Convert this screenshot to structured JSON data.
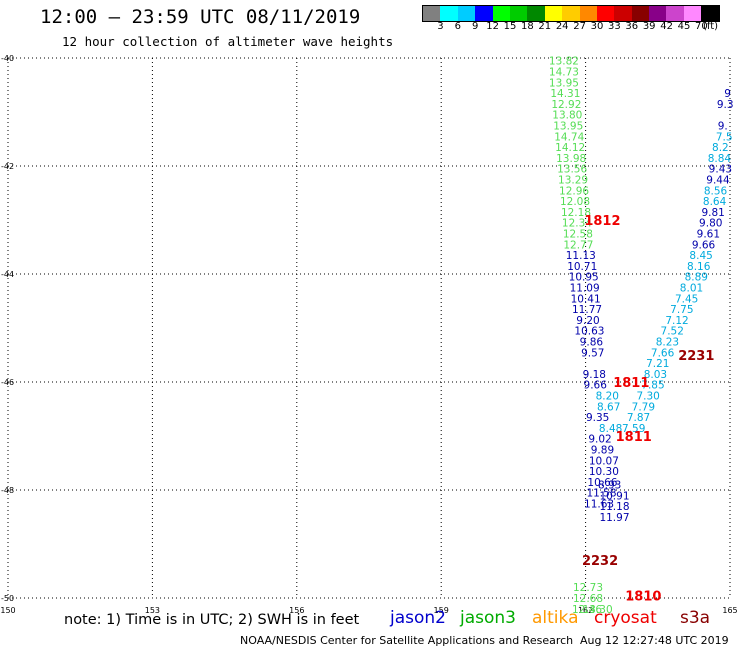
{
  "header": {
    "title": "12:00 – 23:59 UTC 08/11/2019",
    "subtitle": "12 hour collection of altimeter wave heights"
  },
  "legend": {
    "colors": [
      "#808080",
      "#00ffff",
      "#00ccff",
      "#0000ff",
      "#00ff00",
      "#00cc00",
      "#008800",
      "#ffff00",
      "#ffcc00",
      "#ff8800",
      "#ff0000",
      "#cc0000",
      "#880000",
      "#880088",
      "#cc44cc",
      "#ff88ff",
      "#000000"
    ],
    "ticks": [
      "3",
      "6",
      "9",
      "12",
      "15",
      "18",
      "21",
      "24",
      "27",
      "30",
      "33",
      "36",
      "39",
      "42",
      "45",
      "70"
    ],
    "unit": "(ft)"
  },
  "note": "note:  1) Time is in UTC;  2) SWH is in feet",
  "satellites": [
    {
      "name": "jason2",
      "color": "#0000cc"
    },
    {
      "name": "jason3",
      "color": "#00aa00"
    },
    {
      "name": "altika",
      "color": "#ff9900"
    },
    {
      "name": "cryosat",
      "color": "#ee0000"
    },
    {
      "name": "s3a",
      "color": "#880000"
    }
  ],
  "footer": {
    "left": "NOAA/NESDIS Center for Satellite Applications and Research",
    "right": "Aug 12 12:27:48 UTC 2019"
  },
  "chart_data": {
    "type": "scatter",
    "xlim": [
      150,
      165
    ],
    "ylim": [
      -50,
      -40
    ],
    "x_ticks": [
      "150",
      "153",
      "156",
      "159",
      "162",
      "165"
    ],
    "y_ticks": [
      "-40",
      "-42",
      "-44",
      "-46",
      "-48",
      "-50"
    ],
    "palette": {
      "light_green": "#55dd55",
      "dark_blue": "#0000aa",
      "cyan": "#00aadd",
      "red": "#ee0000",
      "dark_red": "#990000",
      "mid_green": "#33bb33"
    },
    "track_labels": [
      {
        "x": 162.35,
        "y": -43.0,
        "text": "1812",
        "color": "red"
      },
      {
        "x": 162.95,
        "y": -46.0,
        "text": "1811",
        "color": "red"
      },
      {
        "x": 163.0,
        "y": -47.0,
        "text": "1811",
        "color": "red"
      },
      {
        "x": 164.3,
        "y": -45.5,
        "text": "2231",
        "color": "dark_red"
      },
      {
        "x": 162.3,
        "y": -49.3,
        "text": "2232",
        "color": "dark_red"
      },
      {
        "x": 163.2,
        "y": -49.95,
        "text": "1810",
        "color": "red"
      }
    ],
    "series": [
      {
        "color": "light_green",
        "points": [
          {
            "x": 161.55,
            "y": -40.05,
            "v": "13.82"
          },
          {
            "x": 161.55,
            "y": -40.25,
            "v": "14.73"
          },
          {
            "x": 161.55,
            "y": -40.45,
            "v": "13.95"
          },
          {
            "x": 161.58,
            "y": -40.65,
            "v": "14.31"
          },
          {
            "x": 161.6,
            "y": -40.85,
            "v": "12.92"
          },
          {
            "x": 161.62,
            "y": -41.05,
            "v": "13.80"
          },
          {
            "x": 161.64,
            "y": -41.25,
            "v": "13.95"
          },
          {
            "x": 161.66,
            "y": -41.45,
            "v": "14.74"
          },
          {
            "x": 161.68,
            "y": -41.65,
            "v": "14.12"
          },
          {
            "x": 161.7,
            "y": -41.85,
            "v": "13.98"
          },
          {
            "x": 161.72,
            "y": -42.05,
            "v": "13.56"
          },
          {
            "x": 161.74,
            "y": -42.25,
            "v": "13.29"
          },
          {
            "x": 161.76,
            "y": -42.45,
            "v": "12.96"
          },
          {
            "x": 161.78,
            "y": -42.65,
            "v": "12.08"
          },
          {
            "x": 161.8,
            "y": -42.85,
            "v": "12.18"
          },
          {
            "x": 161.82,
            "y": -43.05,
            "v": "12.34"
          },
          {
            "x": 161.84,
            "y": -43.25,
            "v": "12.58"
          },
          {
            "x": 161.85,
            "y": -43.45,
            "v": "12.77"
          },
          {
            "x": 162.05,
            "y": -49.8,
            "v": "12.73"
          },
          {
            "x": 162.05,
            "y": -50.0,
            "v": "12.68"
          },
          {
            "x": 162.03,
            "y": -50.2,
            "v": "12.46"
          },
          {
            "x": 162.25,
            "y": -50.2,
            "v": "13.30"
          }
        ]
      },
      {
        "color": "dark_blue",
        "points": [
          {
            "x": 161.9,
            "y": -43.65,
            "v": "11.13"
          },
          {
            "x": 161.93,
            "y": -43.85,
            "v": "10.71"
          },
          {
            "x": 161.96,
            "y": -44.05,
            "v": "10.95"
          },
          {
            "x": 161.98,
            "y": -44.25,
            "v": "11.09"
          },
          {
            "x": 162.0,
            "y": -44.45,
            "v": "10.41"
          },
          {
            "x": 162.03,
            "y": -44.65,
            "v": "11.77"
          },
          {
            "x": 162.05,
            "y": -44.85,
            "v": "9.20"
          },
          {
            "x": 162.08,
            "y": -45.05,
            "v": "10.63"
          },
          {
            "x": 162.12,
            "y": -45.25,
            "v": "9.86"
          },
          {
            "x": 162.15,
            "y": -45.45,
            "v": "9.57"
          },
          {
            "x": 162.18,
            "y": -45.85,
            "v": "9.18"
          },
          {
            "x": 162.2,
            "y": -46.05,
            "v": "9.66"
          },
          {
            "x": 162.25,
            "y": -46.65,
            "v": "9.35"
          },
          {
            "x": 162.3,
            "y": -47.05,
            "v": "9.02"
          },
          {
            "x": 162.35,
            "y": -47.25,
            "v": "9.89"
          },
          {
            "x": 162.38,
            "y": -47.45,
            "v": "10.07"
          },
          {
            "x": 162.38,
            "y": -47.65,
            "v": "10.30"
          },
          {
            "x": 162.35,
            "y": -47.85,
            "v": "10.66"
          },
          {
            "x": 162.33,
            "y": -48.05,
            "v": "11.58"
          },
          {
            "x": 162.28,
            "y": -48.25,
            "v": "11.63"
          },
          {
            "x": 162.6,
            "y": -48.1,
            "v": "10.91"
          },
          {
            "x": 162.6,
            "y": -48.3,
            "v": "11.18"
          },
          {
            "x": 162.6,
            "y": -48.5,
            "v": "11.97"
          },
          {
            "x": 162.5,
            "y": -47.9,
            "v": "8.93"
          },
          {
            "x": 164.9,
            "y": -40.85,
            "v": "9.3"
          },
          {
            "x": 164.85,
            "y": -41.25,
            "v": "9."
          },
          {
            "x": 164.8,
            "y": -42.05,
            "v": "9.43"
          },
          {
            "x": 164.75,
            "y": -42.25,
            "v": "9.44"
          },
          {
            "x": 164.65,
            "y": -42.85,
            "v": "9.81"
          },
          {
            "x": 164.6,
            "y": -43.05,
            "v": "9.80"
          },
          {
            "x": 164.55,
            "y": -43.25,
            "v": "9.61"
          },
          {
            "x": 164.45,
            "y": -43.45,
            "v": "9.66"
          },
          {
            "x": 164.95,
            "y": -40.65,
            "v": "9"
          }
        ]
      },
      {
        "color": "cyan",
        "points": [
          {
            "x": 164.88,
            "y": -41.45,
            "v": "7.5"
          },
          {
            "x": 164.8,
            "y": -41.65,
            "v": "8.2"
          },
          {
            "x": 164.78,
            "y": -41.85,
            "v": "8.84"
          },
          {
            "x": 164.7,
            "y": -42.45,
            "v": "8.56"
          },
          {
            "x": 164.68,
            "y": -42.65,
            "v": "8.64"
          },
          {
            "x": 164.4,
            "y": -43.65,
            "v": "8.45"
          },
          {
            "x": 164.35,
            "y": -43.85,
            "v": "8.16"
          },
          {
            "x": 164.3,
            "y": -44.05,
            "v": "8.89"
          },
          {
            "x": 164.2,
            "y": -44.25,
            "v": "8.01"
          },
          {
            "x": 164.1,
            "y": -44.45,
            "v": "7.45"
          },
          {
            "x": 164.0,
            "y": -44.65,
            "v": "7.75"
          },
          {
            "x": 163.9,
            "y": -44.85,
            "v": "7.12"
          },
          {
            "x": 163.8,
            "y": -45.05,
            "v": "7.52"
          },
          {
            "x": 163.7,
            "y": -45.25,
            "v": "8.23"
          },
          {
            "x": 163.6,
            "y": -45.45,
            "v": "7.66"
          },
          {
            "x": 163.5,
            "y": -45.65,
            "v": "7.21"
          },
          {
            "x": 163.45,
            "y": -45.85,
            "v": "8.03"
          },
          {
            "x": 163.4,
            "y": -46.05,
            "v": "7.85"
          },
          {
            "x": 163.3,
            "y": -46.25,
            "v": "7.30"
          },
          {
            "x": 163.2,
            "y": -46.45,
            "v": "7.79"
          },
          {
            "x": 163.1,
            "y": -46.65,
            "v": "7.87"
          },
          {
            "x": 163.0,
            "y": -46.85,
            "v": "7.59"
          },
          {
            "x": 162.45,
            "y": -46.25,
            "v": "8.20"
          },
          {
            "x": 162.48,
            "y": -46.45,
            "v": "8.67"
          },
          {
            "x": 162.52,
            "y": -46.85,
            "v": "8.48"
          }
        ]
      }
    ]
  }
}
